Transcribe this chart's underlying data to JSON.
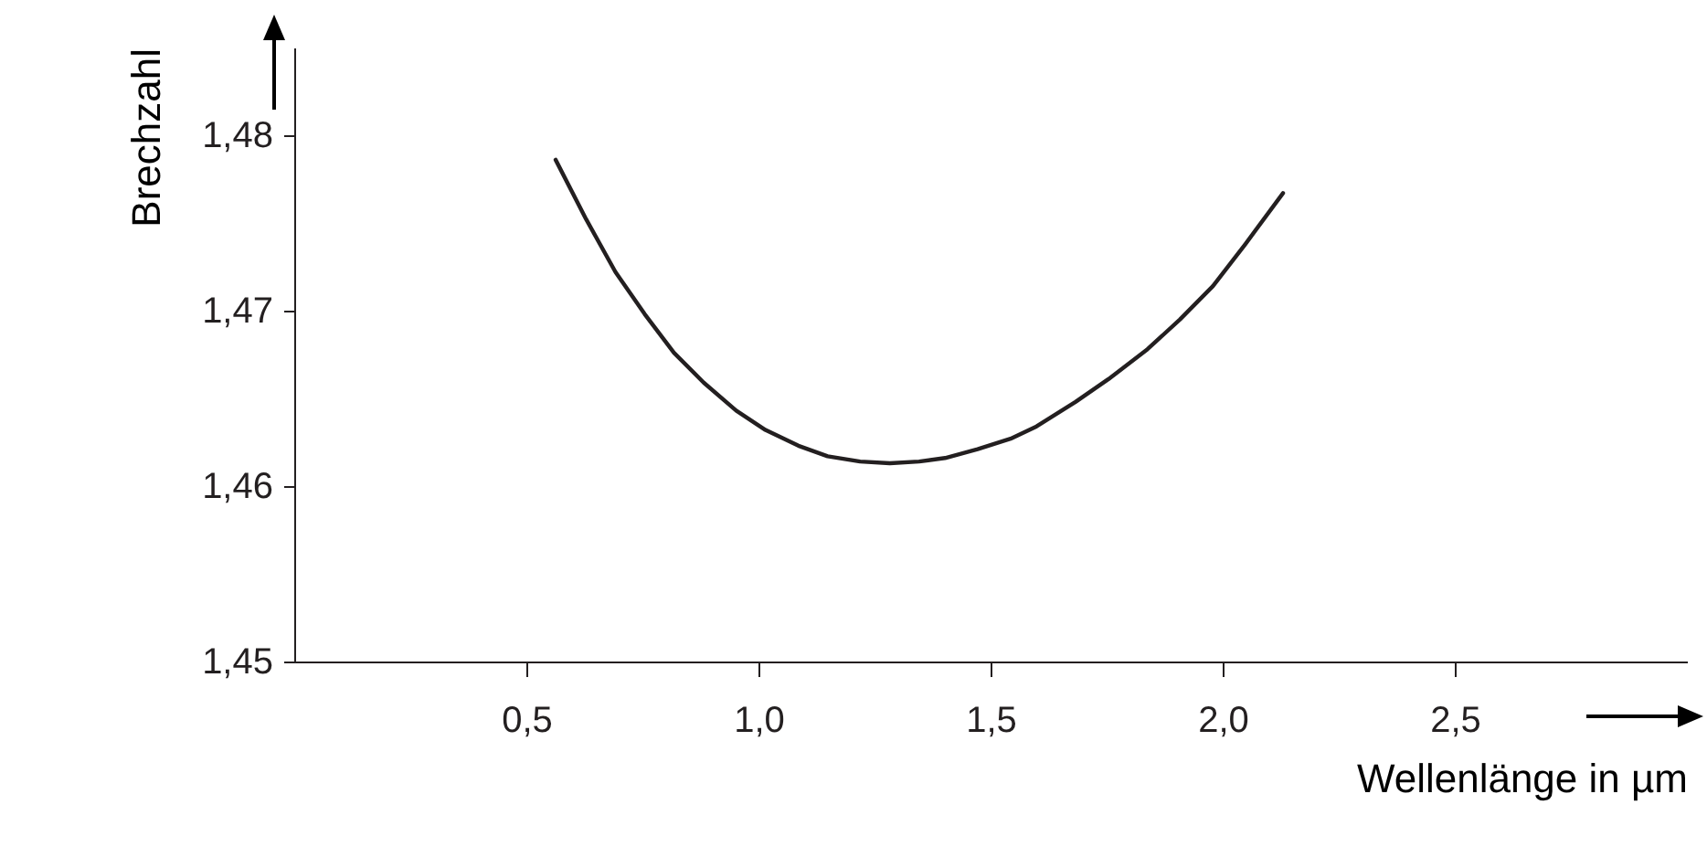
{
  "chart_data": {
    "type": "line",
    "xlabel": "Wellenlänge in µm",
    "ylabel": "Brechzahl",
    "x": [
      0.563,
      0.629,
      0.692,
      0.755,
      0.818,
      0.882,
      0.952,
      1.015,
      1.086,
      1.149,
      1.219,
      1.283,
      1.346,
      1.402,
      1.472,
      1.543,
      1.599,
      1.683,
      1.754,
      1.838,
      1.908,
      1.979,
      2.049,
      2.13
    ],
    "series": [
      {
        "color": "#231f20",
        "values": [
          1.4786,
          1.4752,
          1.4722,
          1.4698,
          1.4676,
          1.4659,
          1.4643,
          1.4632,
          1.4623,
          1.4617,
          1.4614,
          1.4613,
          1.4614,
          1.4616,
          1.4621,
          1.4627,
          1.4634,
          1.4648,
          1.4661,
          1.4678,
          1.4695,
          1.4714,
          1.4738,
          1.4767
        ]
      }
    ],
    "xlim": [
      0,
      3.0
    ],
    "ylim": [
      1.45,
      1.485
    ],
    "xticks": [
      {
        "value": 0.5,
        "label": "0,5"
      },
      {
        "value": 1.0,
        "label": "1,0"
      },
      {
        "value": 1.5,
        "label": "1,5"
      },
      {
        "value": 2.0,
        "label": "2,0"
      },
      {
        "value": 2.5,
        "label": "2,5"
      }
    ],
    "yticks": [
      {
        "value": 1.45,
        "label": "1,45"
      },
      {
        "value": 1.46,
        "label": "1,46"
      },
      {
        "value": 1.47,
        "label": "1,47"
      },
      {
        "value": 1.48,
        "label": "1,48"
      }
    ],
    "grid": false,
    "marker": "none",
    "line_style": "solid"
  }
}
